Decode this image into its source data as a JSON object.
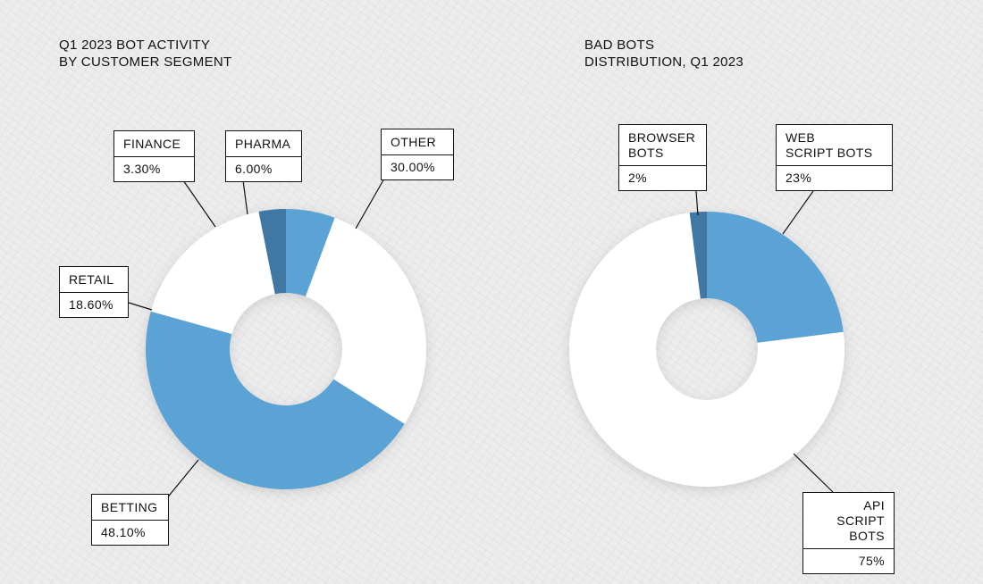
{
  "chart_data": [
    {
      "type": "pie",
      "title": [
        "Q1 2023 BOT ACTIVITY",
        "BY CUSTOMER SEGMENT"
      ],
      "slices": [
        {
          "name": "PHARMA",
          "label": "6.00%",
          "value": 6.0,
          "color": "#5ca3d5"
        },
        {
          "name": "OTHER",
          "label": "30.00%",
          "value": 30.0,
          "color": "#ffffff"
        },
        {
          "name": "BETTING",
          "label": "48.10%",
          "value": 48.1,
          "color": "#5ca3d5"
        },
        {
          "name": "RETAIL",
          "label": "18.60%",
          "value": 18.6,
          "color": "#ffffff"
        },
        {
          "name": "FINANCE",
          "label": "3.30%",
          "value": 3.3,
          "color": "#3f77a3"
        }
      ]
    },
    {
      "type": "pie",
      "title": [
        "BAD BOTS",
        "DISTRIBUTION, Q1 2023"
      ],
      "slices": [
        {
          "name": "WEB\nSCRIPT BOTS",
          "label": "23%",
          "value": 23,
          "color": "#5ca3d5"
        },
        {
          "name": "API SCRIPT\nBOTS",
          "label": "75%",
          "value": 75,
          "color": "#ffffff"
        },
        {
          "name": "BROWSER\nBOTS",
          "label": "2%",
          "value": 2,
          "color": "#3f77a3"
        }
      ]
    }
  ]
}
